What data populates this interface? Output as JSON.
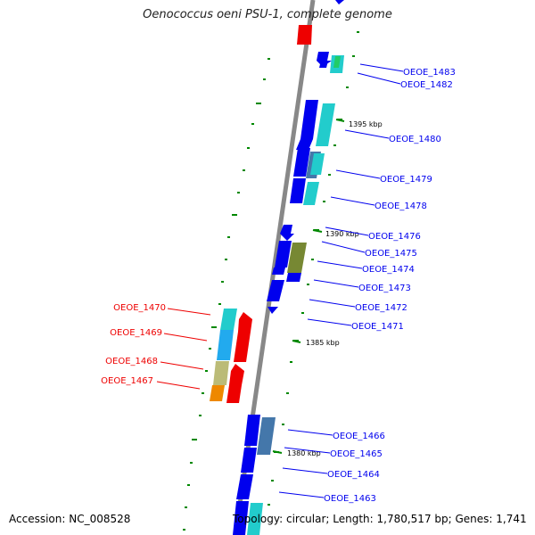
{
  "title": "Oenococcus oeni PSU-1, complete genome",
  "footer": {
    "accession": "Accession: NC_008528",
    "topology": "Topology: circular; Length: 1,780,517 bp; Genes: 1,741"
  },
  "colors": {
    "backbone": "#888888",
    "forward": "#0000ee",
    "reverse": "#ee0000",
    "scale_tick": "#008800",
    "cog_cyan": "#22cccc",
    "cog_steel": "#4477aa",
    "cog_olive": "#778833",
    "cog_khaki": "#bbbb77",
    "cog_orange": "#ee8800",
    "cog_sky": "#22aaee",
    "cog_green": "#22cc66"
  },
  "scale_labels": [
    "1395 kbp",
    "1390 kbp",
    "1385 kbp",
    "1380 kbp"
  ],
  "forward_labels": [
    "OEOE_1483",
    "OEOE_1482",
    "OEOE_1480",
    "OEOE_1479",
    "OEOE_1478",
    "OEOE_1476",
    "OEOE_1475",
    "OEOE_1474",
    "OEOE_1473",
    "OEOE_1472",
    "OEOE_1471",
    "OEOE_1466",
    "OEOE_1465",
    "OEOE_1464",
    "OEOE_1463"
  ],
  "reverse_labels": [
    "OEOE_1470",
    "OEOE_1469",
    "OEOE_1468",
    "OEOE_1467"
  ]
}
